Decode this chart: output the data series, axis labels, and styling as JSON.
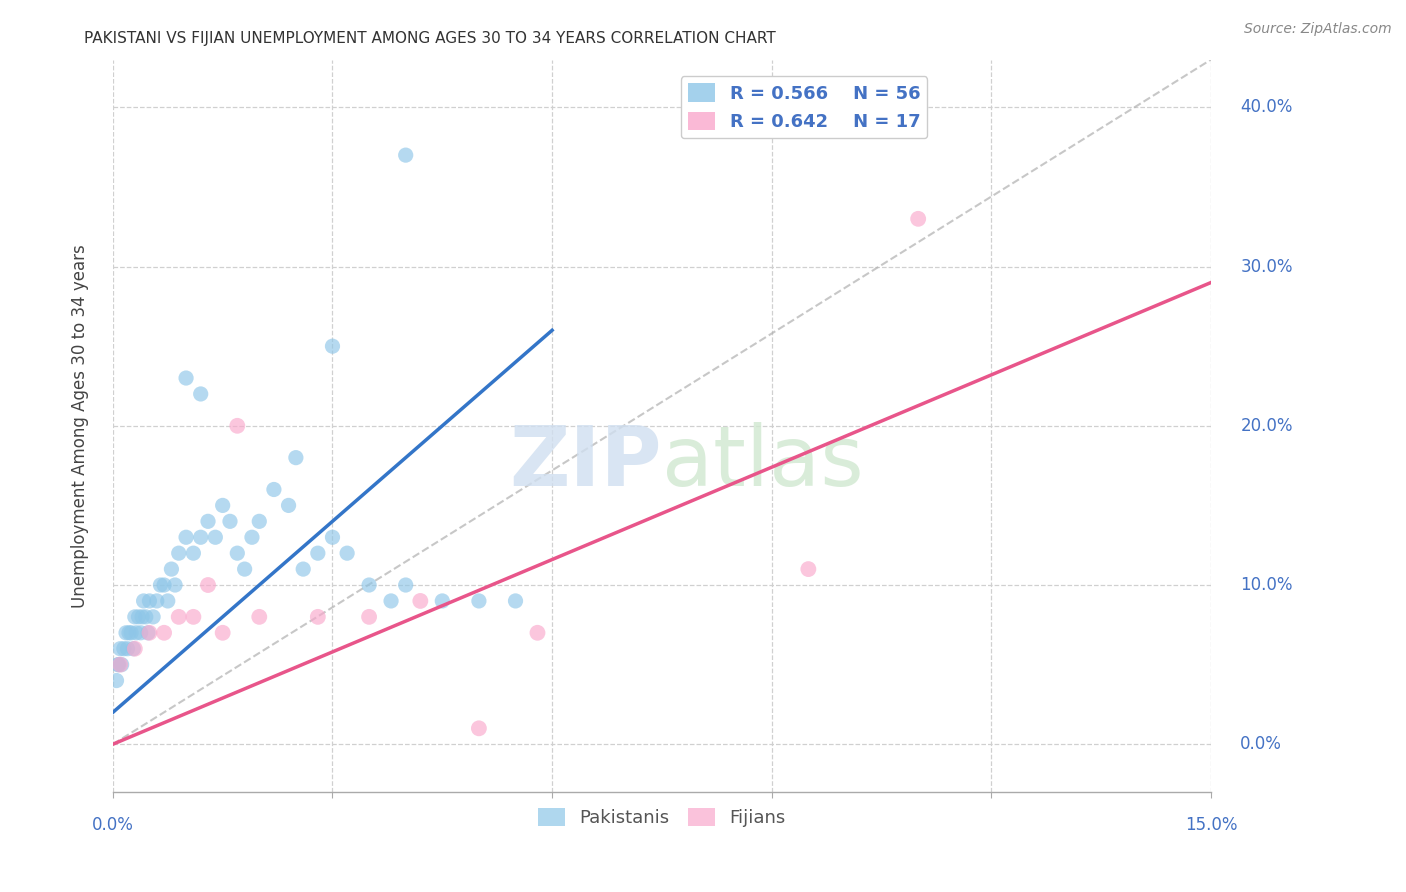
{
  "title": "PAKISTANI VS FIJIAN UNEMPLOYMENT AMONG AGES 30 TO 34 YEARS CORRELATION CHART",
  "source": "Source: ZipAtlas.com",
  "ylabel": "Unemployment Among Ages 30 to 34 years",
  "legend_blue_r": "R = 0.566",
  "legend_blue_n": "N = 56",
  "legend_pink_r": "R = 0.642",
  "legend_pink_n": "N = 17",
  "blue_color": "#8ec6e8",
  "pink_color": "#f9a8cc",
  "blue_line_color": "#3375c8",
  "pink_line_color": "#e8558a",
  "axis_color": "#4472c4",
  "background_color": "#ffffff",
  "xlim": [
    0,
    15
  ],
  "ylim": [
    -3,
    43
  ],
  "pakistanis_x": [
    0.05,
    0.07,
    0.08,
    0.1,
    0.12,
    0.15,
    0.18,
    0.2,
    0.22,
    0.25,
    0.28,
    0.3,
    0.32,
    0.35,
    0.38,
    0.4,
    0.42,
    0.45,
    0.48,
    0.5,
    0.55,
    0.6,
    0.65,
    0.7,
    0.75,
    0.8,
    0.85,
    0.9,
    1.0,
    1.1,
    1.2,
    1.3,
    1.4,
    1.5,
    1.6,
    1.7,
    1.8,
    1.9,
    2.0,
    2.2,
    2.4,
    2.6,
    2.8,
    3.0,
    3.2,
    3.5,
    3.8,
    4.0,
    4.5,
    5.0,
    1.0,
    1.2,
    2.5,
    3.0,
    4.0,
    5.5
  ],
  "pakistanis_y": [
    4,
    5,
    5,
    6,
    5,
    6,
    7,
    6,
    7,
    7,
    6,
    8,
    7,
    8,
    7,
    8,
    9,
    8,
    7,
    9,
    8,
    9,
    10,
    10,
    9,
    11,
    10,
    12,
    13,
    12,
    13,
    14,
    13,
    15,
    14,
    12,
    11,
    13,
    14,
    16,
    15,
    11,
    12,
    13,
    12,
    10,
    9,
    10,
    9,
    9,
    23,
    22,
    18,
    25,
    37,
    9
  ],
  "fijians_x": [
    0.1,
    0.3,
    0.5,
    0.7,
    0.9,
    1.1,
    1.3,
    1.5,
    1.7,
    2.0,
    2.8,
    3.5,
    4.2,
    5.0,
    5.8,
    9.5,
    11.0
  ],
  "fijians_y": [
    5,
    6,
    7,
    7,
    8,
    8,
    10,
    7,
    20,
    8,
    8,
    8,
    9,
    1,
    7,
    11,
    33
  ],
  "blue_line_x0": 0,
  "blue_line_y0": 2,
  "blue_line_x1": 6,
  "blue_line_y1": 26,
  "pink_line_x0": 0,
  "pink_line_y0": 0,
  "pink_line_x1": 15,
  "pink_line_y1": 29,
  "diag_x0": 0,
  "diag_y0": 0,
  "diag_x1": 15,
  "diag_y1": 43
}
